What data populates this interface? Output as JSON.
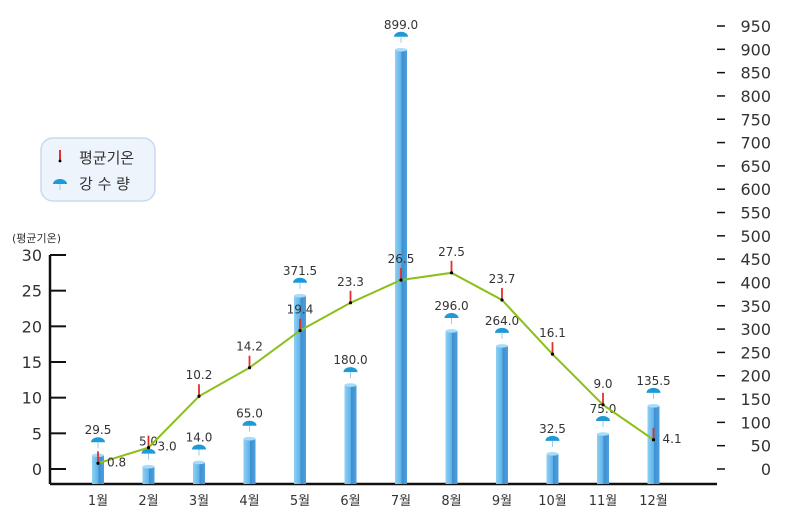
{
  "chart_data": {
    "type": "bar+line",
    "categories": [
      "1월",
      "2월",
      "3월",
      "4월",
      "5월",
      "6월",
      "7월",
      "8월",
      "9월",
      "10월",
      "11월",
      "12월"
    ],
    "series": [
      {
        "name": "강 수 량",
        "type": "bar",
        "axis": "right",
        "color": "#5aaee6",
        "values": [
          29.5,
          5.0,
          14.0,
          65.0,
          371.5,
          180.0,
          899.0,
          296.0,
          264.0,
          32.5,
          75.0,
          135.5
        ]
      },
      {
        "name": "평균기온",
        "type": "line",
        "axis": "left",
        "color": "#8cbf1a",
        "values": [
          0.8,
          3.0,
          10.2,
          14.2,
          19.4,
          23.3,
          26.5,
          27.5,
          23.7,
          16.1,
          9.0,
          4.1
        ]
      }
    ],
    "left_axis": {
      "label": "(평균기온)",
      "range": [
        0,
        30
      ],
      "ticks": [
        0,
        5,
        10,
        15,
        20,
        25,
        30
      ]
    },
    "right_axis": {
      "range": [
        0,
        950
      ],
      "ticks": [
        0,
        50,
        100,
        150,
        200,
        250,
        300,
        350,
        400,
        450,
        500,
        550,
        600,
        650,
        700,
        750,
        800,
        850,
        900,
        950
      ]
    },
    "legend": {
      "placement": "top-left",
      "items": [
        "평균기온",
        "강 수 량"
      ]
    },
    "grid": false,
    "colors": {
      "bar": "#5aaee6",
      "line": "#8cbf1a",
      "marker": "#e03030",
      "umbrella": "#1e9ad6",
      "legend_bg": "#eef4fb",
      "legend_border": "#c8daf0"
    }
  }
}
